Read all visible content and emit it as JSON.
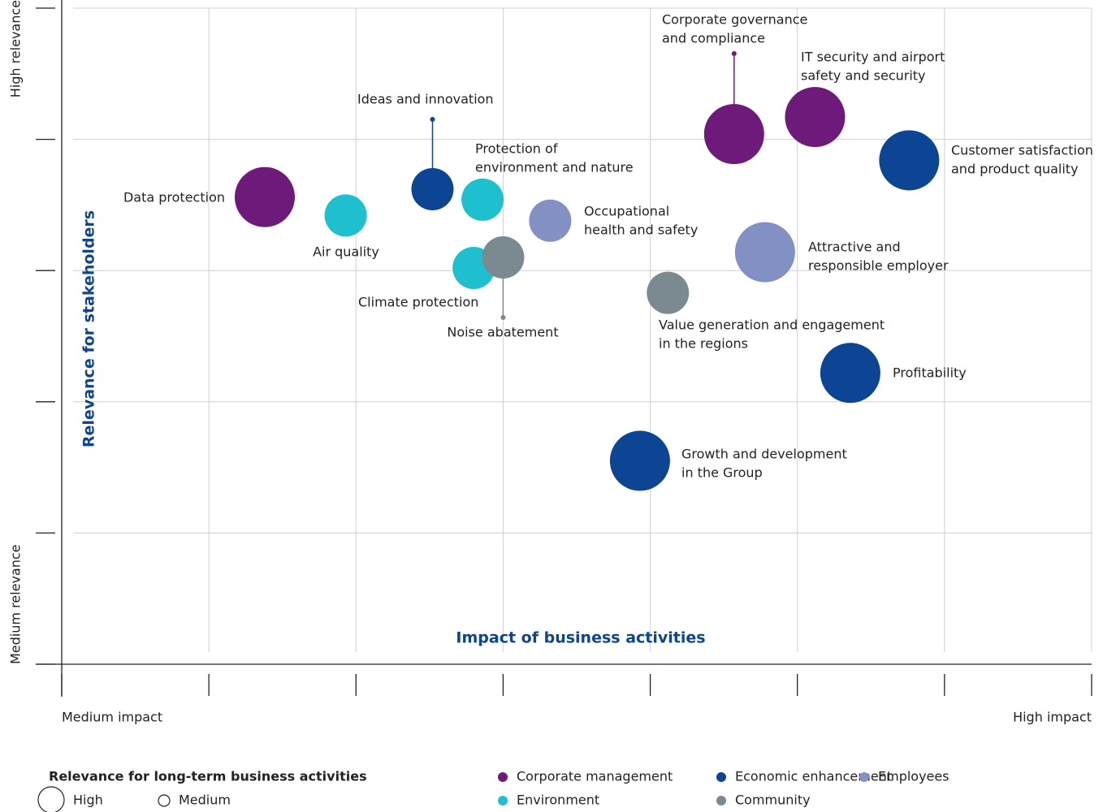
{
  "chart_data": {
    "type": "bubble",
    "x_label": "Impact of business activities",
    "y_label": "Relevance for stakeholders",
    "x_low_label": "Medium impact",
    "x_high_label": "High impact",
    "y_low_label": "Medium relevance",
    "y_high_label": "High relevance",
    "xlim": [
      0,
      7
    ],
    "ylim": [
      0,
      5
    ],
    "xticks": [
      0,
      1,
      2,
      3,
      4,
      5,
      6,
      7
    ],
    "yticks": [
      0,
      1,
      2,
      3,
      4,
      5
    ],
    "grid": true,
    "size_legend": {
      "title": "Relevance for long-term business activities",
      "items": [
        "High",
        "Medium"
      ]
    },
    "series": [
      {
        "name": "Corporate management",
        "color": "#6d1a7a",
        "x": [
          1.38,
          4.57,
          5.12
        ],
        "values": [
          3.56,
          4.04,
          4.17
        ],
        "sizes": [
          "High",
          "High",
          "High"
        ],
        "labels": [
          [
            "Data protection"
          ],
          [
            "Corporate governance",
            "and compliance"
          ],
          [
            "IT security and airport",
            "safety and security"
          ]
        ]
      },
      {
        "name": "Economic enhancement",
        "color": "#0b4594",
        "x": [
          2.52,
          5.76,
          5.36,
          3.93
        ],
        "values": [
          3.62,
          3.84,
          2.22,
          1.55
        ],
        "sizes": [
          "Medium",
          "High",
          "High",
          "High"
        ],
        "labels": [
          [
            "Ideas and innovation"
          ],
          [
            "Customer satisfaction",
            "and product quality"
          ],
          [
            "Profitability"
          ],
          [
            "Growth and development",
            "in the Group"
          ]
        ]
      },
      {
        "name": "Employees",
        "color": "#8290c4",
        "x": [
          3.32,
          4.78
        ],
        "values": [
          3.38,
          3.14
        ],
        "sizes": [
          "Medium",
          "High"
        ],
        "labels": [
          [
            "Occupational",
            "health and safety"
          ],
          [
            "Attractive and",
            "responsible employer"
          ]
        ]
      },
      {
        "name": "Environment",
        "color": "#1ec0cf",
        "x": [
          1.93,
          2.86,
          2.8
        ],
        "values": [
          3.42,
          3.54,
          3.02
        ],
        "sizes": [
          "Medium",
          "Medium",
          "Medium"
        ],
        "labels": [
          [
            "Air quality"
          ],
          [
            "Protection of",
            "environment and nature"
          ],
          [
            "Climate protection"
          ]
        ]
      },
      {
        "name": "Community",
        "color": "#7a8a90",
        "x": [
          3.0,
          4.12
        ],
        "values": [
          3.1,
          2.83
        ],
        "sizes": [
          "Medium",
          "Medium"
        ],
        "labels": [
          [
            "Noise abatement"
          ],
          [
            "Value generation and engagement",
            "in the regions"
          ]
        ]
      }
    ]
  }
}
